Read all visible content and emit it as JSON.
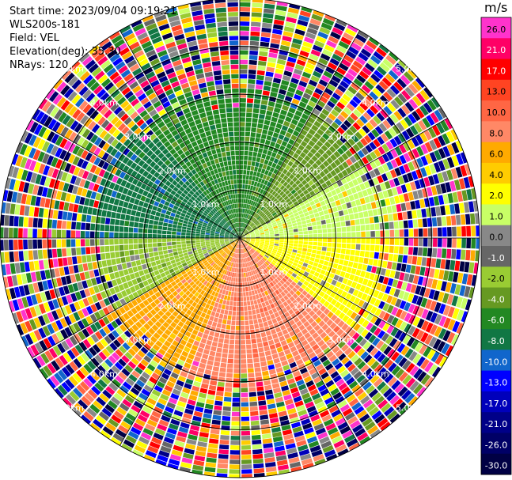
{
  "info": {
    "start_time": "Start time: 2023/09/04 09:19:21",
    "site": "WLS200s-181",
    "field": "Field: VEL",
    "elevation": "Elevation(deg): 35.30",
    "nrays": "NRays: 120"
  },
  "chart_data": {
    "type": "heatmap",
    "projection": "polar-ppi",
    "title": "",
    "nrays": 120,
    "range_rings_km": [
      1,
      2,
      3,
      4,
      5
    ],
    "ring_labels": [
      "1.0km",
      "2.0km",
      "3.0km",
      "4.0km",
      "5.0km"
    ],
    "clean_range_km": 3.1,
    "colorbar": {
      "unit": "m/s",
      "ticks": [
        "26.0",
        "21.0",
        "17.0",
        "13.0",
        "10.0",
        "8.0",
        "6.0",
        "4.0",
        "2.0",
        "1.0",
        "0.0",
        "-1.0",
        "-2.0",
        "-4.0",
        "-6.0",
        "-8.0",
        "-10.0",
        "-13.0",
        "-17.0",
        "-21.0",
        "-26.0",
        "-30.0"
      ],
      "colors": [
        "#ff33cc",
        "#ff0066",
        "#ff0000",
        "#ff4422",
        "#ff6644",
        "#ff8866",
        "#ffaa00",
        "#ffcc00",
        "#ffff00",
        "#c8ff66",
        "#888888",
        "#666666",
        "#99cc33",
        "#669922",
        "#228822",
        "#117744",
        "#1166cc",
        "#0000ff",
        "#0000bb",
        "#000088",
        "#000066",
        "#000044"
      ]
    },
    "sectors": [
      {
        "from_deg": 0,
        "to_deg": 30,
        "value": -6.0
      },
      {
        "from_deg": 30,
        "to_deg": 60,
        "value": -4.0
      },
      {
        "from_deg": 60,
        "to_deg": 90,
        "value": 1.0
      },
      {
        "from_deg": 90,
        "to_deg": 130,
        "value": 2.0
      },
      {
        "from_deg": 130,
        "to_deg": 200,
        "value": 8.0
      },
      {
        "from_deg": 200,
        "to_deg": 240,
        "value": 6.0
      },
      {
        "from_deg": 240,
        "to_deg": 270,
        "value": -2.0
      },
      {
        "from_deg": 270,
        "to_deg": 320,
        "value": -8.0
      },
      {
        "from_deg": 320,
        "to_deg": 360,
        "value": -6.0
      }
    ]
  }
}
